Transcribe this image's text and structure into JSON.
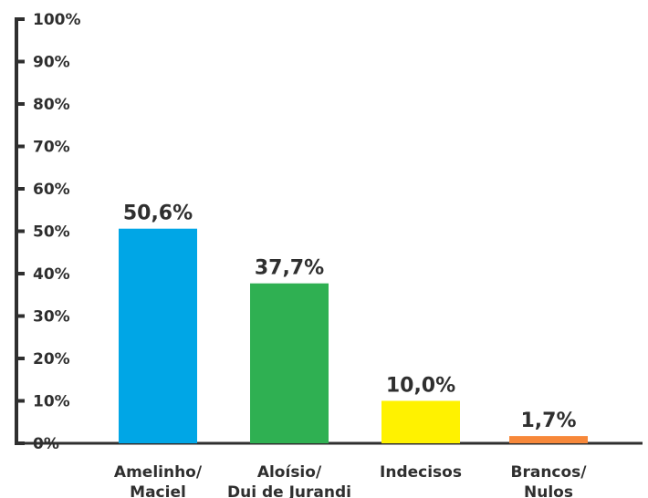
{
  "chart_data": {
    "type": "bar",
    "title": "",
    "xlabel": "",
    "ylabel": "",
    "ylim": [
      0,
      100
    ],
    "yticks": [
      "0%",
      "10%",
      "20%",
      "30%",
      "40%",
      "50%",
      "60%",
      "70%",
      "80%",
      "90%",
      "100%"
    ],
    "grid": false,
    "categories": [
      [
        "Amelinho/",
        "Maciel"
      ],
      [
        "Aloísio/",
        "Dui de Jurandi"
      ],
      [
        "Indecisos"
      ],
      [
        "Brancos/",
        "Nulos"
      ]
    ],
    "values": [
      50.6,
      37.7,
      10.0,
      1.7
    ],
    "value_labels": [
      "50,6%",
      "37,7%",
      "10,0%",
      "1,7%"
    ],
    "colors": [
      "#00a6e6",
      "#2fb052",
      "#fff200",
      "#f7883a"
    ],
    "axis_color": "#2f2f2f"
  }
}
